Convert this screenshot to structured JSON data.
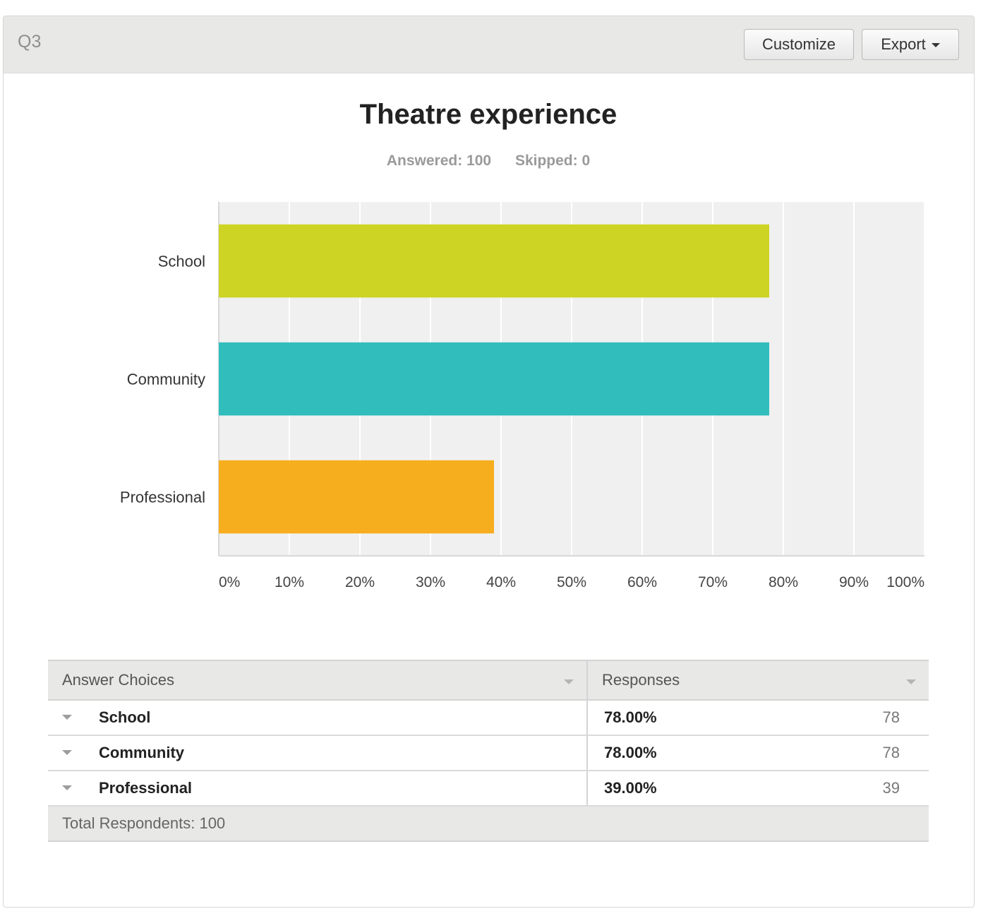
{
  "question": {
    "label": "Q3",
    "customize_label": "Customize",
    "export_label": "Export"
  },
  "chart_data": {
    "type": "bar",
    "orientation": "horizontal",
    "title": "Theatre experience",
    "answered": "Answered: 100",
    "skipped": "Skipped: 0",
    "categories": [
      "School",
      "Community",
      "Professional"
    ],
    "values": [
      78,
      78,
      39
    ],
    "unit": "%",
    "xlim": [
      0,
      100
    ],
    "x_ticks": [
      "0%",
      "10%",
      "20%",
      "30%",
      "40%",
      "50%",
      "60%",
      "70%",
      "80%",
      "90%",
      "100%"
    ],
    "grid": true,
    "colors": [
      "#cdd424",
      "#32bdbd",
      "#f6ad1e"
    ]
  },
  "table": {
    "header_choices": "Answer Choices",
    "header_responses": "Responses",
    "rows": [
      {
        "choice": "School",
        "percent": "78.00%",
        "count": "78"
      },
      {
        "choice": "Community",
        "percent": "78.00%",
        "count": "78"
      },
      {
        "choice": "Professional",
        "percent": "39.00%",
        "count": "39"
      }
    ],
    "total": "Total Respondents: 100"
  }
}
